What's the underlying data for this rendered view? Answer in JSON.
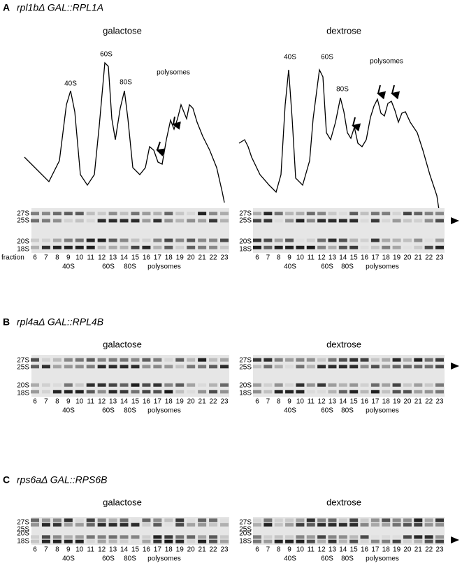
{
  "panels": [
    {
      "letter": "A",
      "title": "rpl1bΔ GAL::RPL1A",
      "conditions": [
        "galactose",
        "dextrose"
      ],
      "profile_labels": [
        [
          "40S",
          "60S",
          "80S",
          "polysomes"
        ],
        [
          "40S",
          "60S",
          "80S",
          "polysomes"
        ]
      ],
      "fraction_label": "fraction",
      "gels": [
        {
          "rrna": [
            "27S",
            "25S",
            "20S",
            "18S"
          ],
          "fractions": [
            "6",
            "7",
            "8",
            "9",
            "10",
            "11",
            "12",
            "13",
            "14",
            "15",
            "16",
            "17",
            "18",
            "19",
            "20",
            "21",
            "22",
            "23"
          ],
          "groups": [
            "40S",
            "60S",
            "80S",
            "polysomes"
          ]
        },
        {
          "rrna": [
            "27S",
            "25S",
            "20S",
            "18S"
          ],
          "fractions": [
            "6",
            "7",
            "8",
            "9",
            "10",
            "11",
            "12",
            "13",
            "14",
            "15",
            "16",
            "17",
            "18",
            "19",
            "20",
            "21",
            "22",
            "23"
          ],
          "groups": [
            "40S",
            "60S",
            "80S",
            "polysomes"
          ]
        }
      ]
    },
    {
      "letter": "B",
      "title": "rpl4aΔ GAL::RPL4B",
      "conditions": [
        "galactose",
        "dextrose"
      ],
      "gels": [
        {
          "rrna": [
            "27S",
            "25S",
            "20S",
            "18S"
          ],
          "fractions": [
            "6",
            "7",
            "8",
            "9",
            "10",
            "11",
            "12",
            "13",
            "14",
            "15",
            "16",
            "17",
            "18",
            "19",
            "20",
            "21",
            "22",
            "23"
          ],
          "groups": [
            "40S",
            "60S",
            "80S",
            "polysomes"
          ]
        },
        {
          "rrna": [
            "27S",
            "25S",
            "20S",
            "18S"
          ],
          "fractions": [
            "6",
            "7",
            "8",
            "9",
            "10",
            "11",
            "12",
            "13",
            "14",
            "15",
            "16",
            "17",
            "18",
            "19",
            "20",
            "21",
            "22",
            "23"
          ],
          "groups": [
            "40S",
            "60S",
            "80S",
            "polysomes"
          ]
        }
      ]
    },
    {
      "letter": "C",
      "title": "rps6aΔ GAL::RPS6B",
      "conditions": [
        "galactose",
        "dextrose"
      ],
      "gels": [
        {
          "rrna": [
            "27S",
            "25S",
            "20S",
            "18S"
          ],
          "fractions": [
            "6",
            "7",
            "8",
            "9",
            "10",
            "11",
            "12",
            "13",
            "14",
            "15",
            "16",
            "17",
            "18",
            "19",
            "20",
            "21",
            "22",
            "23"
          ],
          "groups": [
            "40S",
            "60S",
            "80S",
            "polysomes"
          ]
        },
        {
          "rrna": [
            "27S",
            "25S",
            "20S",
            "18S"
          ],
          "fractions": [
            "6",
            "7",
            "8",
            "9",
            "10",
            "11",
            "12",
            "13",
            "14",
            "15",
            "16",
            "17",
            "18",
            "19",
            "20",
            "21",
            "22",
            "23"
          ],
          "groups": [
            "40S",
            "60S",
            "80S",
            "polysomes"
          ]
        }
      ]
    }
  ]
}
